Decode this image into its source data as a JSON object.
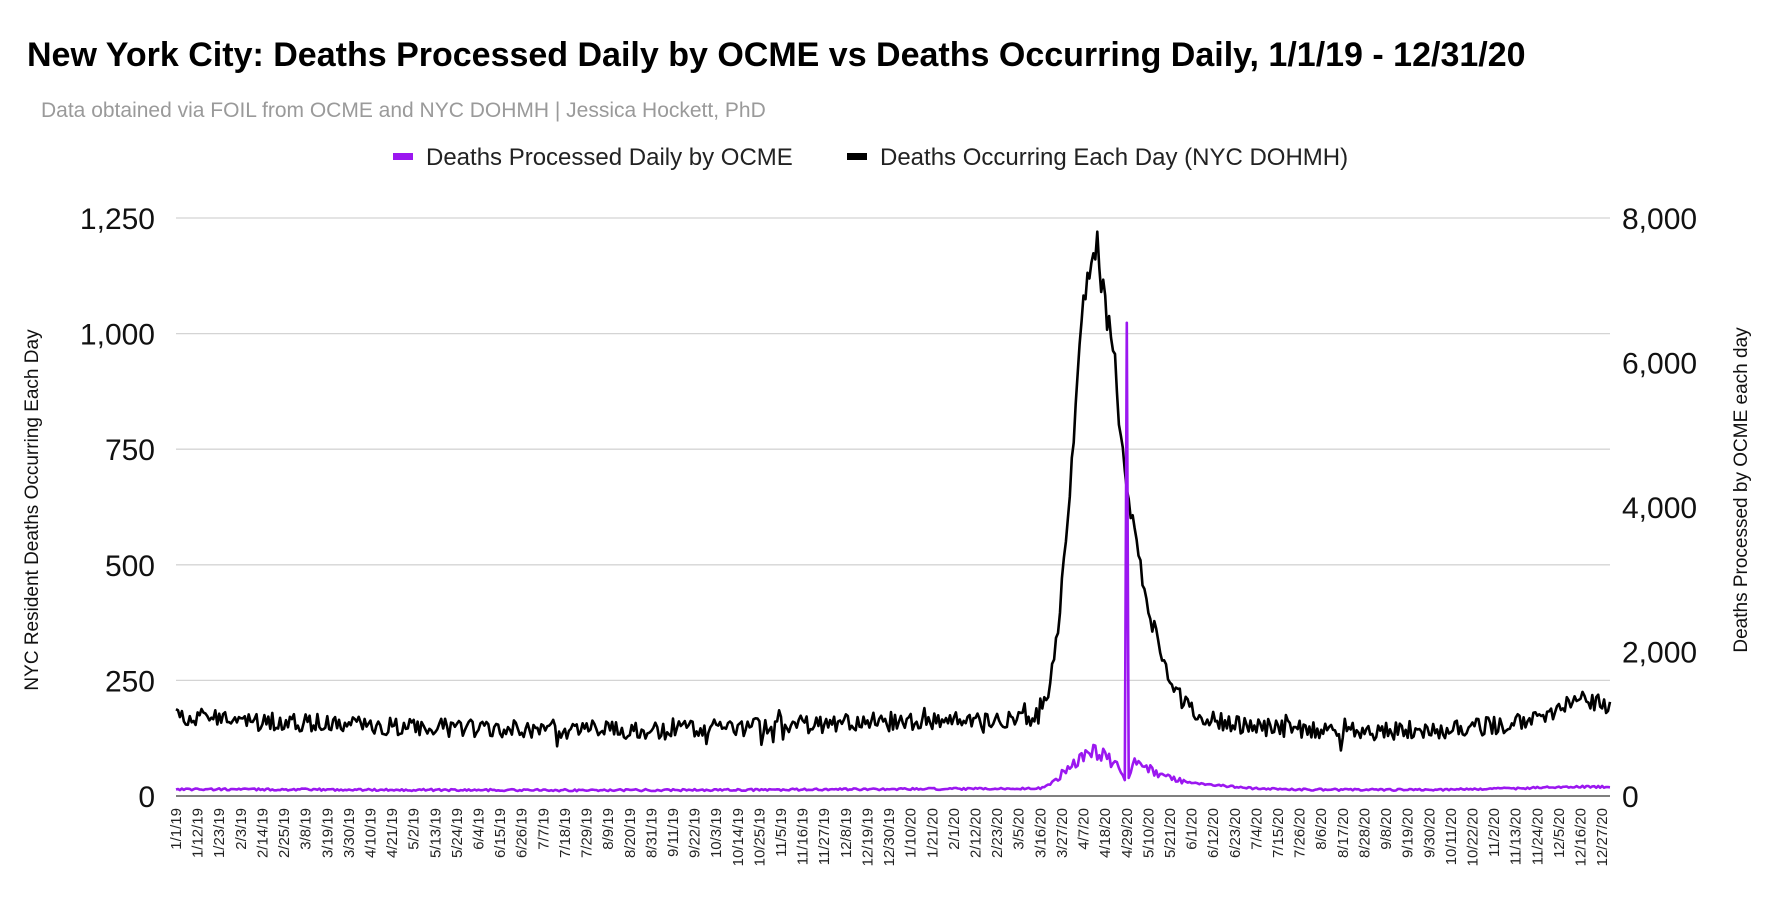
{
  "chart_data": {
    "type": "line",
    "title": "New York City: Deaths Processed Daily by OCME vs Deaths Occurring Daily, 1/1/19 - 12/31/20",
    "subtitle": "Data obtained via FOIL from OCME and NYC DOHMH | Jessica Hockett, PhD",
    "x_start": "1/1/19",
    "x_end": "12/31/20",
    "x_tick_interval_days": 11,
    "x_tick_labels": [
      "1/1/19",
      "1/12/19",
      "1/23/19",
      "2/3/19",
      "2/14/19",
      "2/25/19",
      "3/8/19",
      "3/19/19",
      "3/30/19",
      "4/10/19",
      "4/21/19",
      "5/2/19",
      "5/13/19",
      "5/24/19",
      "6/4/19",
      "6/15/19",
      "6/26/19",
      "7/7/19",
      "7/18/19",
      "7/29/19",
      "8/9/19",
      "8/20/19",
      "8/31/19",
      "9/11/19",
      "9/22/19",
      "10/3/19",
      "10/14/19",
      "10/25/19",
      "11/5/19",
      "11/16/19",
      "11/27/19",
      "12/8/19",
      "12/19/19",
      "12/30/19",
      "1/10/20",
      "1/21/20",
      "2/1/20",
      "2/12/20",
      "2/23/20",
      "3/5/20",
      "3/16/20",
      "3/27/20",
      "4/7/20",
      "4/18/20",
      "4/29/20",
      "5/10/20",
      "5/21/20",
      "6/1/20",
      "6/12/20",
      "6/23/20",
      "7/4/20",
      "7/15/20",
      "7/26/20",
      "8/6/20",
      "8/17/20",
      "8/28/20",
      "9/8/20",
      "9/19/20",
      "9/30/20",
      "10/11/20",
      "10/22/20",
      "11/2/20",
      "11/13/20",
      "11/24/20",
      "12/5/20",
      "12/16/20",
      "12/27/20"
    ],
    "y_left": {
      "label": "NYC Resident Deaths Occurring Each Day",
      "min": 0,
      "max": 1250,
      "ticks": [
        "0",
        "250",
        "500",
        "750",
        "1,000",
        "1,250"
      ]
    },
    "y_right": {
      "label": "Deaths Processed by OCME each day",
      "min": 0,
      "max": 8000,
      "ticks": [
        "0",
        "2,000",
        "4,000",
        "6,000",
        "8,000"
      ]
    },
    "legend_position": "top-center",
    "series": [
      {
        "name": "Deaths Processed Daily by OCME",
        "axis": "right",
        "color": "#9b17f0",
        "keypoints": [
          [
            0,
            95
          ],
          [
            70,
            88
          ],
          [
            200,
            80
          ],
          [
            300,
            85
          ],
          [
            360,
            95
          ],
          [
            430,
            100
          ],
          [
            440,
            110
          ],
          [
            445,
            160
          ],
          [
            450,
            280
          ],
          [
            455,
            430
          ],
          [
            460,
            520
          ],
          [
            464,
            640
          ],
          [
            468,
            600
          ],
          [
            472,
            560
          ],
          [
            476,
            480
          ],
          [
            480,
            380
          ],
          [
            482,
            320
          ],
          [
            483,
            220
          ],
          [
            484,
            6550
          ],
          [
            485,
            250
          ],
          [
            488,
            460
          ],
          [
            492,
            430
          ],
          [
            496,
            370
          ],
          [
            500,
            300
          ],
          [
            505,
            260
          ],
          [
            515,
            190
          ],
          [
            530,
            150
          ],
          [
            545,
            110
          ],
          [
            560,
            95
          ],
          [
            600,
            85
          ],
          [
            650,
            90
          ],
          [
            690,
            110
          ],
          [
            700,
            125
          ],
          [
            714,
            130
          ],
          [
            730,
            125
          ]
        ],
        "spike_note": "single-day spike of about 6,550 on 4/29/20"
      },
      {
        "name": "Deaths Occurring Each Day (NYC DOHMH)",
        "axis": "left",
        "color": "#000000",
        "keypoints": [
          [
            0,
            172
          ],
          [
            120,
            148
          ],
          [
            250,
            142
          ],
          [
            365,
            163
          ],
          [
            420,
            162
          ],
          [
            435,
            168
          ],
          [
            440,
            175
          ],
          [
            445,
            240
          ],
          [
            450,
            400
          ],
          [
            455,
            660
          ],
          [
            460,
            960
          ],
          [
            463,
            1110
          ],
          [
            466,
            1160
          ],
          [
            469,
            1200
          ],
          [
            471,
            1100
          ],
          [
            474,
            1040
          ],
          [
            478,
            960
          ],
          [
            480,
            800
          ],
          [
            484,
            660
          ],
          [
            488,
            580
          ],
          [
            492,
            470
          ],
          [
            496,
            390
          ],
          [
            500,
            330
          ],
          [
            505,
            265
          ],
          [
            510,
            220
          ],
          [
            515,
            190
          ],
          [
            525,
            165
          ],
          [
            540,
            155
          ],
          [
            560,
            145
          ],
          [
            600,
            138
          ],
          [
            650,
            145
          ],
          [
            690,
            160
          ],
          [
            705,
            190
          ],
          [
            714,
            215
          ],
          [
            725,
            200
          ],
          [
            730,
            190
          ]
        ],
        "peak_note": "peak of about 1,200 around 4/8/20"
      }
    ]
  }
}
